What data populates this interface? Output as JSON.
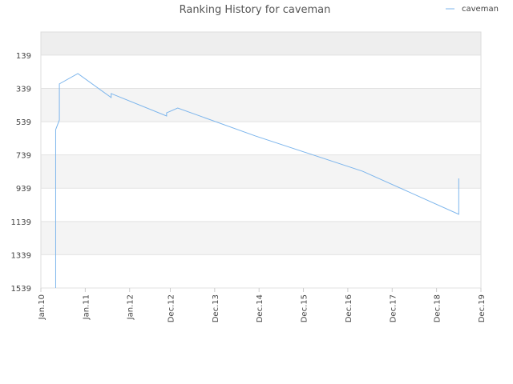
{
  "chart_data": {
    "type": "line",
    "title": "Ranking History for caveman",
    "x": [
      "2010-05",
      "2010-05",
      "2010-05",
      "2010-06",
      "2010-06",
      "2010-06",
      "2010-06",
      "2010-11",
      "2011-08",
      "2011-08",
      "2012-11",
      "2012-11",
      "2013-02",
      "2014-11",
      "2017-04",
      "2019-06",
      "2019-06",
      "2019-06"
    ],
    "series": [
      {
        "name": "caveman",
        "color": "#7cb5ec",
        "values": [
          1539,
          793,
          587,
          529,
          409,
          337,
          312,
          250,
          394,
          370,
          505,
          486,
          457,
          625,
          837,
          1096,
          889,
          880
        ]
      }
    ],
    "xlim": [
      "2010-01",
      "2019-12"
    ],
    "xticks": [
      {
        "value": "2010-01",
        "label": "Jan.10"
      },
      {
        "value": "2011-01",
        "label": "Jan.11"
      },
      {
        "value": "2012-01",
        "label": "Jan.12"
      },
      {
        "value": "2012-12",
        "label": "Dec.12"
      },
      {
        "value": "2013-12",
        "label": "Dec.13"
      },
      {
        "value": "2014-12",
        "label": "Dec.14"
      },
      {
        "value": "2015-12",
        "label": "Dec.15"
      },
      {
        "value": "2016-12",
        "label": "Dec.16"
      },
      {
        "value": "2017-12",
        "label": "Dec.17"
      },
      {
        "value": "2018-12",
        "label": "Dec.18"
      },
      {
        "value": "2019-12",
        "label": "Dec.19"
      }
    ],
    "ylim": [
      1539,
      0
    ],
    "yticks": [
      139,
      339,
      539,
      739,
      939,
      1139,
      1339,
      1539
    ],
    "grid": true,
    "legend": "top-right"
  }
}
